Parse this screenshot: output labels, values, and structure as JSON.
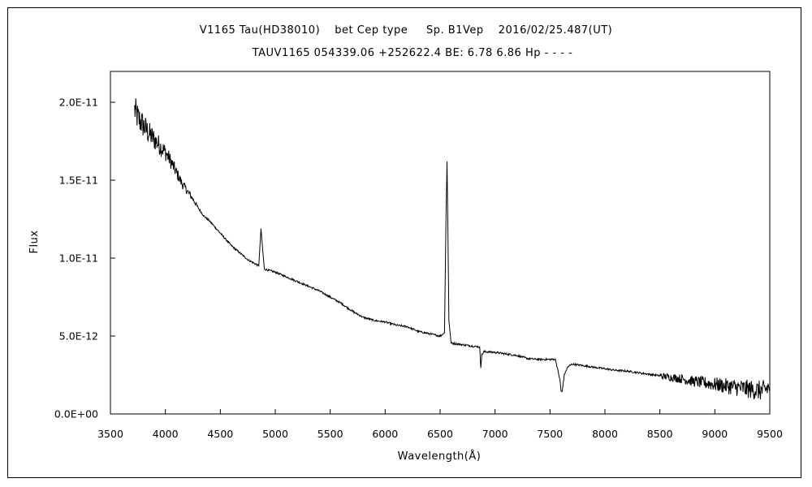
{
  "chart_data": {
    "type": "line",
    "title_line1": "V1165 Tau(HD38010)　 bet Cep type 　 Sp. B1Vep　 2016/02/25.487(UT)",
    "title_line2": "TAUV1165 054339.06 +252622.4 BE: 6.78 6.86 Hp - - - -",
    "xlabel": "Wavelength(Å)",
    "ylabel": "Flux",
    "xlim": [
      3500,
      9500
    ],
    "ylim": [
      0,
      2e-11
    ],
    "x_tick_labels": [
      "3500",
      "4000",
      "4500",
      "5000",
      "5500",
      "6000",
      "6500",
      "7000",
      "7500",
      "8000",
      "8500",
      "9000",
      "9500"
    ],
    "y_tick_labels": [
      "0.0E+00",
      "5.0E-12",
      "1.0E-11",
      "1.5E-11",
      "2.0E-11"
    ],
    "grid": false,
    "legend": "none",
    "series": [
      {
        "x": [
          3720,
          3750,
          3800,
          3850,
          3900,
          3950,
          4000,
          4050,
          4100,
          4150,
          4200,
          4250,
          4300,
          4350,
          4400,
          4450,
          4500,
          4550,
          4600,
          4650,
          4700,
          4750,
          4800,
          4850,
          4870,
          4900,
          4950,
          5000,
          5100,
          5200,
          5300,
          5400,
          5500,
          5600,
          5700,
          5800,
          5900,
          6000,
          6100,
          6200,
          6300,
          6400,
          6500,
          6540,
          6555,
          6563,
          6570,
          6580,
          6600,
          6700,
          6800,
          6860,
          6870,
          6880,
          6900,
          7000,
          7100,
          7200,
          7300,
          7400,
          7500,
          7550,
          7590,
          7600,
          7610,
          7630,
          7660,
          7700,
          7800,
          7900,
          8000,
          8100,
          8200,
          8300,
          8400,
          8500,
          8600,
          8700,
          8800,
          8900,
          9000,
          9100,
          9200,
          9300,
          9400,
          9450,
          9500
        ],
        "y": [
          1.95e-11,
          1.9e-11,
          1.85e-11,
          1.8e-11,
          1.76e-11,
          1.72e-11,
          1.68e-11,
          1.62e-11,
          1.55e-11,
          1.48e-11,
          1.43e-11,
          1.38e-11,
          1.32e-11,
          1.27e-11,
          1.24e-11,
          1.2e-11,
          1.16e-11,
          1.12e-11,
          1.08e-11,
          1.05e-11,
          1.02e-11,
          9.9e-12,
          9.7e-12,
          9.5e-12,
          1.19e-11,
          9.3e-12,
          9.2e-12,
          9.1e-12,
          8.8e-12,
          8.5e-12,
          8.2e-12,
          7.9e-12,
          7.5e-12,
          7.1e-12,
          6.6e-12,
          6.2e-12,
          6e-12,
          5.9e-12,
          5.7e-12,
          5.6e-12,
          5.3e-12,
          5.15e-12,
          5e-12,
          5.2e-12,
          1.3e-11,
          1.62e-11,
          1.25e-11,
          6e-12,
          4.55e-12,
          4.45e-12,
          4.35e-12,
          4.3e-12,
          3e-12,
          3.8e-12,
          4e-12,
          3.95e-12,
          3.85e-12,
          3.75e-12,
          3.55e-12,
          3.5e-12,
          3.5e-12,
          3.5e-12,
          2.2e-12,
          1.5e-12,
          1.4e-12,
          2.5e-12,
          3e-12,
          3.2e-12,
          3.1e-12,
          3e-12,
          2.9e-12,
          2.8e-12,
          2.75e-12,
          2.65e-12,
          2.55e-12,
          2.45e-12,
          2.35e-12,
          2.25e-12,
          2.1e-12,
          2e-12,
          1.9e-12,
          1.8e-12,
          1.7e-12,
          1.6e-12,
          1.5e-12,
          1.5e-12,
          1.8e-12
        ]
      }
    ]
  }
}
